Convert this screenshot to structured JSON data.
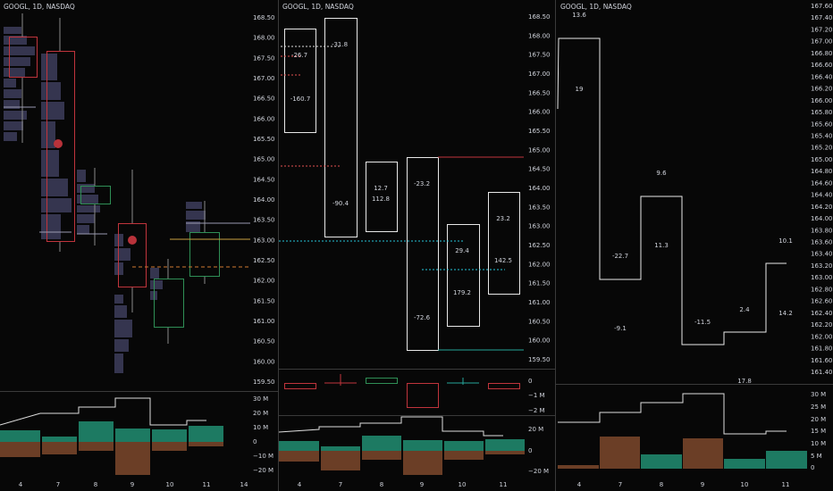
{
  "panels": [
    {
      "title": "GOOGL, 1D, NASDAQ",
      "price_axis": [
        "168.50",
        "168.00",
        "167.50",
        "167.00",
        "166.50",
        "166.00",
        "165.50",
        "165.00",
        "164.50",
        "164.00",
        "163.50",
        "163.00",
        "162.50",
        "162.00",
        "161.50",
        "161.00",
        "160.50",
        "160.00",
        "159.50"
      ],
      "volume_axis": [
        "30 M",
        "20 M",
        "10 M",
        "0",
        "−10 M",
        "−20 M"
      ],
      "x_axis": [
        "4",
        "7",
        "8",
        "9",
        "10",
        "11",
        "14"
      ],
      "annotations": []
    },
    {
      "title": "GOOGL, 1D, NASDAQ",
      "price_axis": [
        "168.50",
        "168.00",
        "167.50",
        "167.00",
        "166.50",
        "166.00",
        "165.50",
        "165.00",
        "164.50",
        "164.00",
        "163.50",
        "163.00",
        "162.50",
        "162.00",
        "161.50",
        "161.00",
        "160.50",
        "160.00",
        "159.50"
      ],
      "delta_axis": [
        "0",
        "−1 M",
        "−2 M"
      ],
      "volume_axis": [
        "20 M",
        "0",
        "−20 M"
      ],
      "x_axis": [
        "4",
        "7",
        "8",
        "9",
        "10",
        "11"
      ],
      "annotations": [
        "-31.8",
        "-26.7",
        "-160.7",
        "-90.4",
        "12.7",
        "112.8",
        "-23.2",
        "-72.6",
        "29.4",
        "179.2",
        "23.2",
        "142.5"
      ]
    },
    {
      "title": "GOOGL, 1D, NASDAQ",
      "price_axis": [
        "167.60",
        "167.40",
        "167.20",
        "167.00",
        "166.80",
        "166.60",
        "166.40",
        "166.20",
        "166.00",
        "165.80",
        "165.60",
        "165.40",
        "165.20",
        "165.00",
        "164.80",
        "164.60",
        "164.40",
        "164.20",
        "164.00",
        "163.80",
        "163.60",
        "163.40",
        "163.20",
        "163.00",
        "162.80",
        "162.60",
        "162.40",
        "162.20",
        "162.00",
        "161.80",
        "161.60",
        "161.40"
      ],
      "volume_axis": [
        "30 M",
        "25 M",
        "20 M",
        "15 M",
        "10 M",
        "5 M",
        "0"
      ],
      "x_axis": [
        "4",
        "7",
        "8",
        "9",
        "10",
        "11"
      ],
      "annotations": [
        "13.6",
        "19",
        "-22.7",
        "-9.1",
        "9.6",
        "11.3",
        "-11.5",
        "2.4",
        "10.1",
        "14.2",
        "17.8"
      ]
    }
  ]
}
